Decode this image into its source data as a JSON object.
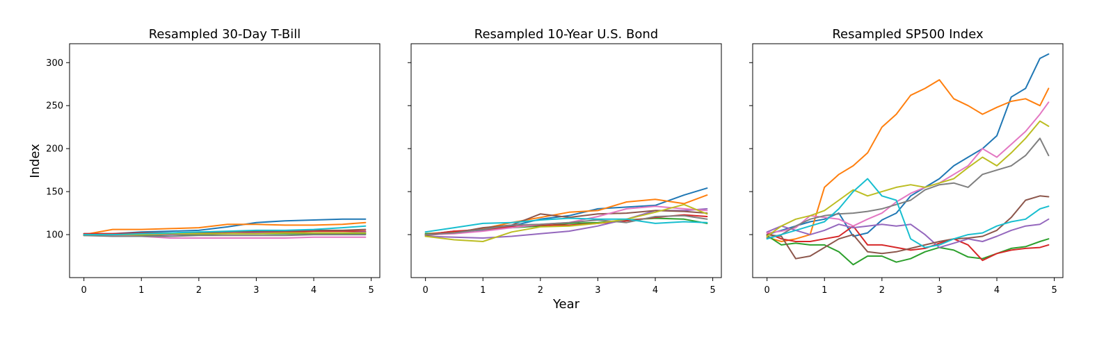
{
  "figure": {
    "xlabel": "Year",
    "ylabel": "Index"
  },
  "chart_data": [
    {
      "type": "line",
      "title": "Resampled 30-Day T-Bill",
      "xlim": [
        -0.25,
        5.15
      ],
      "ylim": [
        50,
        322
      ],
      "xticks": [
        0,
        1,
        2,
        3,
        4,
        5
      ],
      "yticks": [
        100,
        150,
        200,
        250,
        300
      ],
      "show_y_tick_labels": true,
      "x": [
        0,
        0.5,
        1,
        1.5,
        2,
        2.5,
        3,
        3.5,
        4,
        4.5,
        4.9
      ],
      "series": [
        {
          "color": "#1f77b4",
          "values": [
            101,
            101,
            103,
            104,
            105,
            109,
            114,
            116,
            117,
            118,
            118
          ]
        },
        {
          "color": "#ff7f0e",
          "values": [
            100,
            106,
            106,
            107,
            108,
            112,
            112,
            111,
            111,
            112,
            114
          ]
        },
        {
          "color": "#2ca02c",
          "values": [
            99,
            99,
            99,
            100,
            100,
            101,
            101,
            101,
            101,
            101,
            101
          ]
        },
        {
          "color": "#d62728",
          "values": [
            101,
            101,
            102,
            102,
            102,
            103,
            103,
            103,
            104,
            104,
            104
          ]
        },
        {
          "color": "#9467bd",
          "values": [
            100,
            100,
            100,
            100,
            101,
            101,
            102,
            102,
            102,
            102,
            103
          ]
        },
        {
          "color": "#8c564b",
          "values": [
            100,
            100,
            100,
            101,
            102,
            103,
            104,
            104,
            105,
            105,
            106
          ]
        },
        {
          "color": "#e377c2",
          "values": [
            100,
            99,
            98,
            96,
            96,
            96,
            96,
            96,
            97,
            97,
            97
          ]
        },
        {
          "color": "#7f7f7f",
          "values": [
            99,
            98,
            98,
            98,
            99,
            99,
            99,
            99,
            100,
            100,
            100
          ]
        },
        {
          "color": "#bcbd22",
          "values": [
            100,
            100,
            100,
            101,
            101,
            101,
            101,
            102,
            102,
            102,
            102
          ]
        },
        {
          "color": "#17becf",
          "values": [
            100,
            100,
            101,
            102,
            103,
            104,
            105,
            105,
            106,
            108,
            110
          ]
        }
      ]
    },
    {
      "type": "line",
      "title": "Resampled 10-Year U.S. Bond",
      "xlim": [
        -0.25,
        5.15
      ],
      "ylim": [
        50,
        322
      ],
      "xticks": [
        0,
        1,
        2,
        3,
        4,
        5
      ],
      "yticks": [
        100,
        150,
        200,
        250,
        300
      ],
      "show_y_tick_labels": false,
      "x": [
        0,
        0.5,
        1,
        1.5,
        2,
        2.5,
        3,
        3.5,
        4,
        4.5,
        4.9
      ],
      "series": [
        {
          "color": "#1f77b4",
          "values": [
            100,
            104,
            105,
            110,
            118,
            122,
            130,
            132,
            134,
            146,
            154
          ]
        },
        {
          "color": "#ff7f0e",
          "values": [
            101,
            103,
            107,
            114,
            120,
            126,
            128,
            138,
            141,
            136,
            146
          ]
        },
        {
          "color": "#2ca02c",
          "values": [
            101,
            102,
            106,
            108,
            110,
            113,
            114,
            117,
            119,
            118,
            113
          ]
        },
        {
          "color": "#d62728",
          "values": [
            100,
            104,
            106,
            109,
            111,
            111,
            113,
            116,
            120,
            123,
            121
          ]
        },
        {
          "color": "#9467bd",
          "values": [
            98,
            97,
            96,
            98,
            101,
            104,
            110,
            118,
            128,
            128,
            130
          ]
        },
        {
          "color": "#8c564b",
          "values": [
            99,
            102,
            108,
            111,
            124,
            120,
            124,
            125,
            128,
            127,
            125
          ]
        },
        {
          "color": "#e377c2",
          "values": [
            100,
            101,
            104,
            108,
            112,
            114,
            121,
            130,
            133,
            130,
            128
          ]
        },
        {
          "color": "#7f7f7f",
          "values": [
            100,
            102,
            106,
            111,
            112,
            114,
            117,
            114,
            121,
            122,
            118
          ]
        },
        {
          "color": "#bcbd22",
          "values": [
            98,
            94,
            92,
            103,
            109,
            110,
            113,
            118,
            126,
            135,
            124
          ]
        },
        {
          "color": "#17becf",
          "values": [
            103,
            108,
            113,
            114,
            117,
            119,
            118,
            118,
            113,
            115,
            114
          ]
        }
      ]
    },
    {
      "type": "line",
      "title": "Resampled SP500 Index",
      "xlim": [
        -0.25,
        5.15
      ],
      "ylim": [
        50,
        322
      ],
      "xticks": [
        0,
        1,
        2,
        3,
        4,
        5
      ],
      "yticks": [
        100,
        150,
        200,
        250,
        300
      ],
      "show_y_tick_labels": false,
      "x": [
        0,
        0.25,
        0.5,
        0.75,
        1,
        1.25,
        1.5,
        1.75,
        2,
        2.25,
        2.5,
        2.75,
        3,
        3.25,
        3.5,
        3.75,
        4,
        4.25,
        4.5,
        4.75,
        4.9
      ],
      "series": [
        {
          "color": "#1f77b4",
          "values": [
            100,
            105,
            110,
            115,
            118,
            125,
            98,
            102,
            117,
            125,
            145,
            155,
            165,
            180,
            190,
            200,
            215,
            260,
            270,
            305,
            310
          ]
        },
        {
          "color": "#ff7f0e",
          "values": [
            97,
            92,
            95,
            100,
            155,
            170,
            180,
            195,
            225,
            240,
            262,
            270,
            280,
            258,
            250,
            240,
            248,
            255,
            258,
            250,
            270
          ]
        },
        {
          "color": "#2ca02c",
          "values": [
            99,
            88,
            90,
            88,
            88,
            80,
            65,
            75,
            75,
            68,
            72,
            80,
            85,
            82,
            74,
            72,
            78,
            84,
            86,
            92,
            95
          ]
        },
        {
          "color": "#d62728",
          "values": [
            102,
            95,
            92,
            92,
            95,
            98,
            110,
            88,
            88,
            85,
            82,
            84,
            90,
            95,
            88,
            70,
            78,
            82,
            84,
            85,
            88
          ]
        },
        {
          "color": "#9467bd",
          "values": [
            103,
            110,
            105,
            100,
            105,
            112,
            108,
            110,
            112,
            110,
            112,
            100,
            85,
            90,
            95,
            92,
            98,
            105,
            110,
            112,
            118
          ]
        },
        {
          "color": "#8c564b",
          "values": [
            100,
            98,
            72,
            75,
            85,
            95,
            100,
            80,
            78,
            80,
            84,
            88,
            92,
            95,
            96,
            98,
            105,
            120,
            140,
            145,
            144
          ]
        },
        {
          "color": "#e377c2",
          "values": [
            102,
            104,
            108,
            122,
            120,
            118,
            110,
            118,
            125,
            138,
            148,
            155,
            160,
            170,
            180,
            200,
            190,
            205,
            220,
            240,
            254
          ]
        },
        {
          "color": "#7f7f7f",
          "values": [
            96,
            100,
            110,
            118,
            122,
            124,
            125,
            127,
            130,
            135,
            140,
            152,
            158,
            160,
            155,
            170,
            175,
            180,
            192,
            212,
            192
          ]
        },
        {
          "color": "#bcbd22",
          "values": [
            98,
            110,
            118,
            122,
            128,
            140,
            152,
            145,
            150,
            155,
            158,
            155,
            160,
            165,
            178,
            190,
            180,
            195,
            212,
            232,
            226
          ]
        },
        {
          "color": "#17becf",
          "values": [
            95,
            100,
            105,
            110,
            115,
            130,
            150,
            165,
            145,
            140,
            95,
            85,
            88,
            95,
            100,
            102,
            110,
            115,
            118,
            130,
            133
          ]
        }
      ]
    }
  ]
}
